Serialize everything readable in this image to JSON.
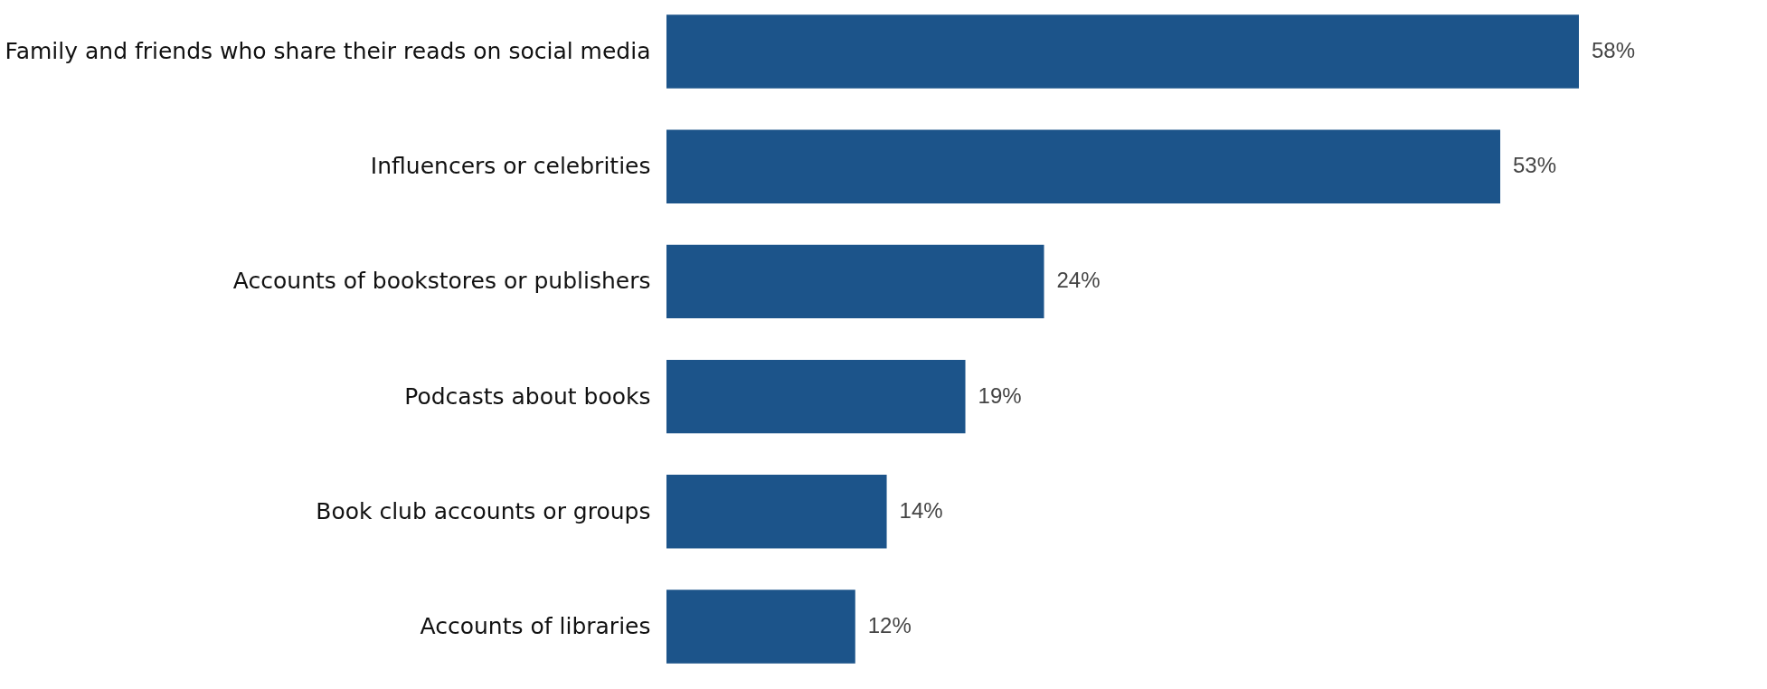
{
  "chart_data": {
    "type": "bar",
    "orientation": "horizontal",
    "categories": [
      "Family and friends who share their reads on social media",
      "Influencers or celebrities",
      "Accounts of bookstores or publishers",
      "Podcasts about books",
      "Book club accounts or groups",
      "Accounts of libraries"
    ],
    "values": [
      58,
      53,
      24,
      19,
      14,
      12
    ],
    "value_labels": [
      "58%",
      "53%",
      "24%",
      "19%",
      "14%",
      "12%"
    ],
    "color": "#1c548a",
    "grid": false,
    "tick_labels": "y"
  }
}
